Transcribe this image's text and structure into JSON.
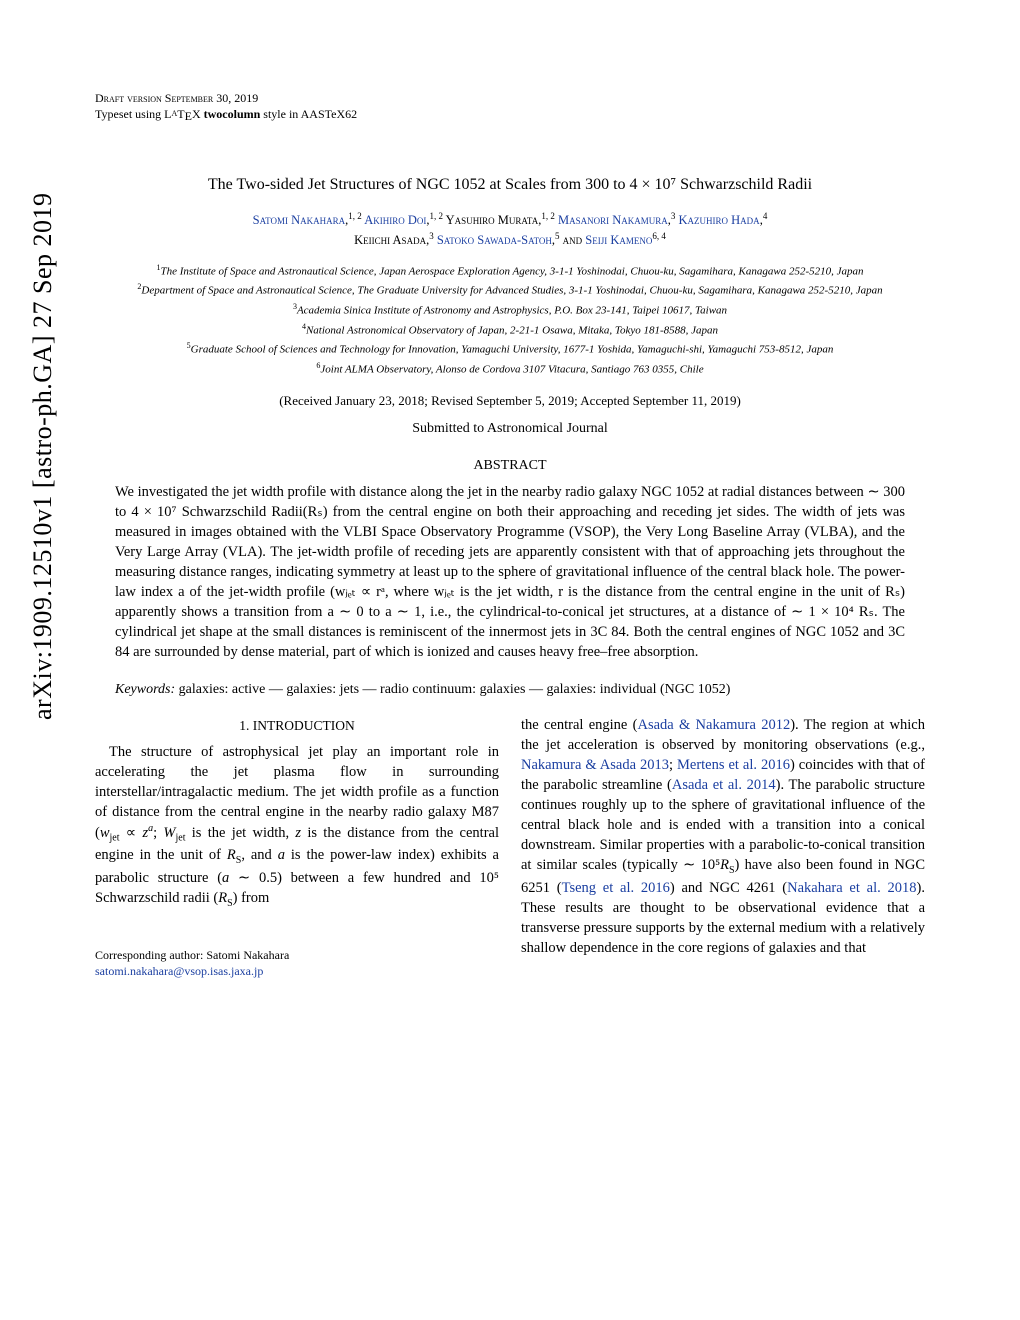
{
  "arxiv": "arXiv:1909.12510v1  [astro-ph.GA]  27 Sep 2019",
  "header": {
    "draft": "Draft version September 30, 2019",
    "typeset_prefix": "Typeset using L",
    "typeset_tex": "A",
    "typeset_suffix": "T",
    "typeset_e": "E",
    "typeset_x": "X ",
    "typeset_style": "twocolumn",
    "typeset_end": " style in AASTeX62"
  },
  "title": "The Two-sided Jet Structures of NGC 1052 at Scales from 300 to 4 × 10⁷ Schwarzschild Radii",
  "authors": {
    "a1": "Satomi Nakahara",
    "a1_sup": "1, 2",
    "a2": "Akihiro Doi",
    "a2_sup": "1, 2",
    "a3": "Yasuhiro Murata",
    "a3_sup": "1, 2",
    "a4": "Masanori Nakamura",
    "a4_sup": "3",
    "a5": "Kazuhiro Hada",
    "a5_sup": "4",
    "a6": "Keiichi Asada",
    "a6_sup": "3",
    "a7": "Satoko Sawada-Satoh",
    "a7_sup": "5",
    "and": "and",
    "a8": "Seiji Kameno",
    "a8_sup": "6, 4"
  },
  "affiliations": {
    "af1_num": "1",
    "af1": "The Institute of Space and Astronautical Science, Japan Aerospace Exploration Agency, 3-1-1 Yoshinodai, Chuou-ku, Sagamihara, Kanagawa 252-5210, Japan",
    "af2_num": "2",
    "af2": "Department of Space and Astronautical Science, The Graduate University for Advanced Studies, 3-1-1 Yoshinodai, Chuou-ku, Sagamihara, Kanagawa 252-5210, Japan",
    "af3_num": "3",
    "af3": "Academia Sinica Institute of Astronomy and Astrophysics, P.O. Box 23-141, Taipei 10617, Taiwan",
    "af4_num": "4",
    "af4": "National Astronomical Observatory of Japan, 2-21-1 Osawa, Mitaka, Tokyo 181-8588, Japan",
    "af5_num": "5",
    "af5": "Graduate School of Sciences and Technology for Innovation, Yamaguchi University, 1677-1 Yoshida, Yamaguchi-shi, Yamaguchi 753-8512, Japan",
    "af6_num": "6",
    "af6": "Joint ALMA Observatory, Alonso de Cordova 3107 Vitacura, Santiago 763 0355, Chile"
  },
  "dates": "(Received January 23, 2018; Revised September 5, 2019; Accepted September 11, 2019)",
  "submitted": "Submitted to Astronomical Journal",
  "abstract_heading": "ABSTRACT",
  "abstract": "We investigated the jet width profile with distance along the jet in the nearby radio galaxy NGC 1052 at radial distances between ∼ 300 to 4 × 10⁷ Schwarzschild Radii(Rₛ) from the central engine on both their approaching and receding jet sides. The width of jets was measured in images obtained with the VLBI Space Observatory Programme (VSOP), the Very Long Baseline Array (VLBA), and the Very Large Array (VLA). The jet-width profile of receding jets are apparently consistent with that of approaching jets throughout the measuring distance ranges, indicating symmetry at least up to the sphere of gravitational influence of the central black hole. The power-law index a of the jet-width profile (wⱼₑₜ ∝ rᵃ, where wⱼₑₜ is the jet width, r is the distance from the central engine in the unit of Rₛ) apparently shows a transition from a ∼ 0 to a ∼ 1, i.e., the cylindrical-to-conical jet structures, at a distance of ∼ 1 × 10⁴ Rₛ. The cylindrical jet shape at the small distances is reminiscent of the innermost jets in 3C 84. Both the central engines of NGC 1052 and 3C 84 are surrounded by dense material, part of which is ionized and causes heavy free–free absorption.",
  "keywords_label": "Keywords:",
  "keywords": " galaxies: active — galaxies: jets — radio continuum: galaxies — galaxies: individual (NGC 1052)",
  "section1_num": "1.",
  "section1_title": "INTRODUCTION",
  "body": {
    "p1_a": "The structure of astrophysical jet play an important role in accelerating the jet plasma flow in surrounding interstellar/intragalactic medium. The jet width profile as a function of distance from the central engine in the nearby radio galaxy M87 (",
    "p1_b": " ∝ ",
    "p1_c": "; ",
    "p1_d": " is the jet width, ",
    "p1_e": " is the distance from the central engine in the unit of ",
    "p1_f": ", and ",
    "p1_g": " is the power-law index) exhibits a parabolic structure (",
    "p1_h": " ∼ 0.5) between a few hundred and 10⁵ Schwarzschild radii (",
    "p1_i": ") from",
    "p2_a": "the central engine (",
    "cite1": "Asada & Nakamura 2012",
    "p2_b": "). The region at which the jet acceleration is observed by monitoring observations (e.g., ",
    "cite2": "Nakamura & Asada 2013",
    "p2_c": "; ",
    "cite3": "Mertens et al. 2016",
    "p2_d": ") coincides with that of the parabolic streamline (",
    "cite4": "Asada et al. 2014",
    "p2_e": "). The parabolic structure continues roughly up to the sphere of gravitational influence of the central black hole and is ended with a transition into a conical downstream. Similar properties with a parabolic-to-conical transition at similar scales (typically ∼ 10⁵",
    "p2_f": ") have also been found in NGC 6251 (",
    "cite5": "Tseng et al. 2016",
    "p2_g": ") and NGC 4261 (",
    "cite6": "Nakahara et al. 2018",
    "p2_h": "). These results are thought to be observational evidence that a transverse pressure supports by the external medium with a relatively shallow dependence in the core regions of galaxies and that"
  },
  "corresponding": {
    "label": "Corresponding author: Satomi Nakahara",
    "email": "satomi.nakahara@vsop.isas.jaxa.jp"
  }
}
